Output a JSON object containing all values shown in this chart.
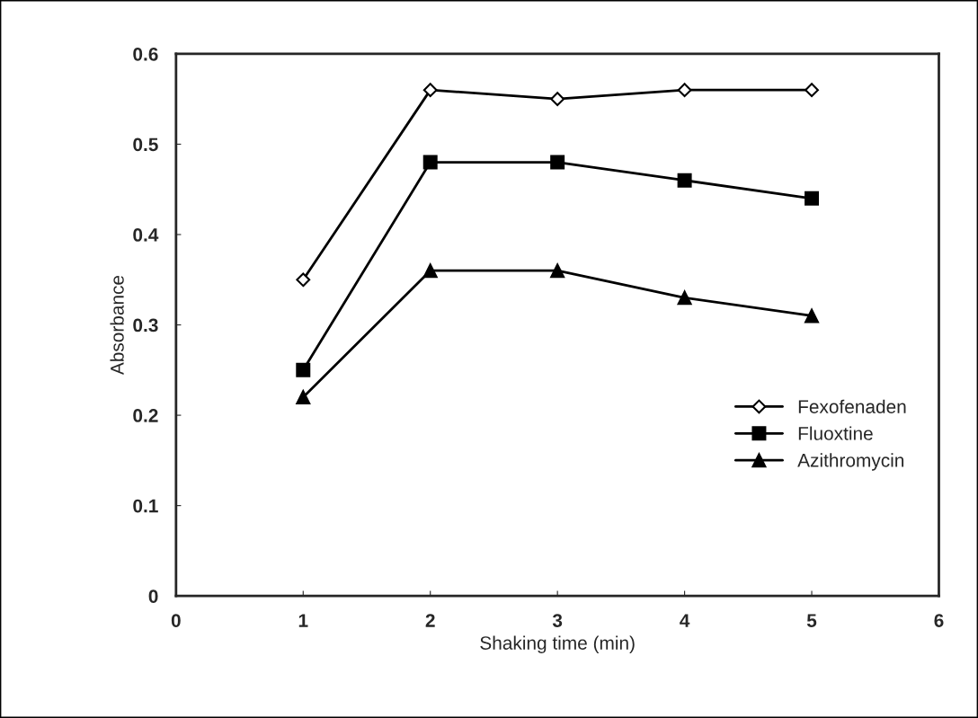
{
  "chart_data": {
    "type": "line",
    "xlabel": "Shaking time (min)",
    "ylabel": "Absorbance",
    "x": [
      1,
      2,
      3,
      4,
      5
    ],
    "series": [
      {
        "name": "Fexofenaden",
        "color": "#000000",
        "marker": "diamond",
        "values": [
          0.35,
          0.56,
          0.55,
          0.56,
          0.56
        ]
      },
      {
        "name": "Fluoxtine",
        "color": "#000000",
        "marker": "square",
        "values": [
          0.25,
          0.48,
          0.48,
          0.46,
          0.44
        ]
      },
      {
        "name": "Azithromycin",
        "color": "#000000",
        "marker": "triangle",
        "values": [
          0.22,
          0.36,
          0.36,
          0.33,
          0.31
        ]
      }
    ],
    "xlim": [
      0,
      6
    ],
    "xticks": [
      0,
      1,
      2,
      3,
      4,
      5,
      6
    ],
    "ylim": [
      0,
      0.6
    ],
    "yticks": [
      0,
      0.1,
      0.2,
      0.3,
      0.4,
      0.5,
      0.6
    ],
    "grid": false,
    "legend": "bottom right",
    "line_style": "solid"
  }
}
